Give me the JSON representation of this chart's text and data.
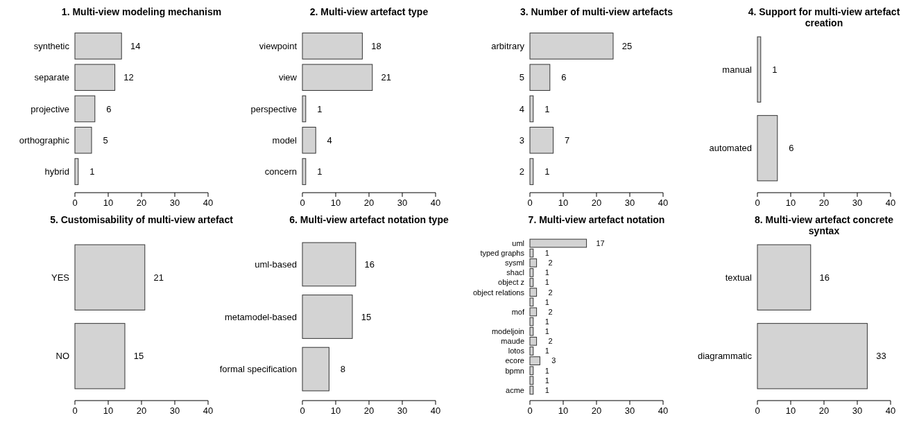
{
  "chart_data": [
    {
      "type": "bar",
      "orientation": "horizontal",
      "title": "1. Multi-view modeling mechanism",
      "categories": [
        "synthetic",
        "separate",
        "projective",
        "orthographic",
        "hybrid"
      ],
      "values": [
        14,
        12,
        6,
        5,
        1
      ],
      "color": "#d3d3d3",
      "xlim": [
        0,
        40
      ],
      "xticks": [
        0,
        10,
        20,
        30,
        40
      ],
      "data_labels": true
    },
    {
      "type": "bar",
      "orientation": "horizontal",
      "title": "2. Multi-view artefact type",
      "categories": [
        "viewpoint",
        "view",
        "perspective",
        "model",
        "concern"
      ],
      "values": [
        18,
        21,
        1,
        4,
        1
      ],
      "color": "#d3d3d3",
      "xlim": [
        0,
        40
      ],
      "xticks": [
        0,
        10,
        20,
        30,
        40
      ],
      "data_labels": true
    },
    {
      "type": "bar",
      "orientation": "horizontal",
      "title": "3. Number of multi-view artefacts",
      "categories": [
        "arbitrary",
        "5",
        "4",
        "3",
        "2"
      ],
      "values": [
        25,
        6,
        1,
        7,
        1
      ],
      "color": "#d3d3d3",
      "xlim": [
        0,
        40
      ],
      "xticks": [
        0,
        10,
        20,
        30,
        40
      ],
      "data_labels": true
    },
    {
      "type": "bar",
      "orientation": "horizontal",
      "title": "4. Support for multi-view artefact\ncreation",
      "categories": [
        "manual",
        "automated"
      ],
      "values": [
        1,
        6
      ],
      "color": "#d3d3d3",
      "xlim": [
        0,
        40
      ],
      "xticks": [
        0,
        10,
        20,
        30,
        40
      ],
      "data_labels": true
    },
    {
      "type": "bar",
      "orientation": "horizontal",
      "title": "5. Customisability of multi-view artefact",
      "categories": [
        "YES",
        "NO"
      ],
      "values": [
        21,
        15
      ],
      "color": "#d3d3d3",
      "xlim": [
        0,
        40
      ],
      "xticks": [
        0,
        10,
        20,
        30,
        40
      ],
      "data_labels": true
    },
    {
      "type": "bar",
      "orientation": "horizontal",
      "title": "6. Multi-view artefact notation type",
      "categories": [
        "uml-based",
        "metamodel-based",
        "formal specification"
      ],
      "values": [
        16,
        15,
        8
      ],
      "color": "#d3d3d3",
      "xlim": [
        0,
        40
      ],
      "xticks": [
        0,
        10,
        20,
        30,
        40
      ],
      "data_labels": true
    },
    {
      "type": "bar",
      "orientation": "horizontal",
      "title": "7. Multi-view artefact notation",
      "categories": [
        "uml",
        "typed graphs",
        "sysml",
        "shacl",
        "object z",
        "object relations",
        null,
        "mof",
        null,
        "modeljoin",
        "maude",
        "lotos",
        "ecore",
        "bpmn",
        null,
        "acme"
      ],
      "values": [
        17,
        1,
        2,
        1,
        1,
        2,
        1,
        2,
        1,
        1,
        2,
        1,
        3,
        1,
        1,
        1
      ],
      "color": "#d3d3d3",
      "xlim": [
        0,
        40
      ],
      "xticks": [
        0,
        10,
        20,
        30,
        40
      ],
      "data_labels": true
    },
    {
      "type": "bar",
      "orientation": "horizontal",
      "title": "8. Multi-view artefact concrete\nsyntax",
      "categories": [
        "textual",
        "diagrammatic"
      ],
      "values": [
        16,
        33
      ],
      "color": "#d3d3d3",
      "xlim": [
        0,
        40
      ],
      "xticks": [
        0,
        10,
        20,
        30,
        40
      ],
      "data_labels": true
    }
  ]
}
